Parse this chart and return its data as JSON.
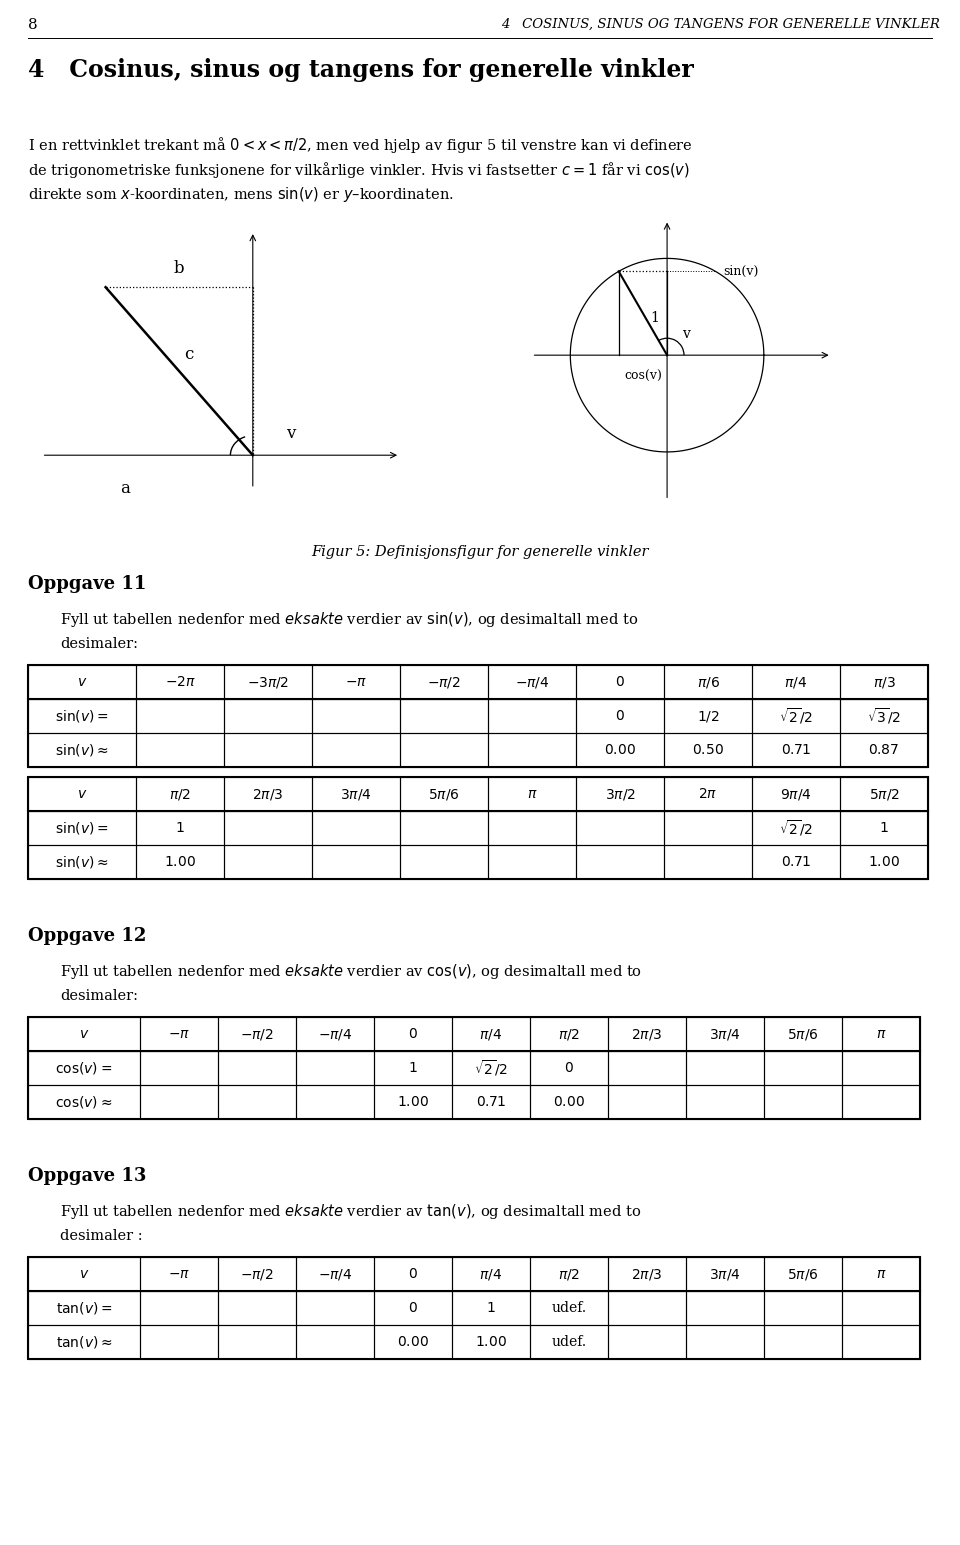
{
  "page_num": "8",
  "header": "4   COSINUS, SINUS OG TANGENS FOR GENERELLE VINKLER",
  "section_title": "4   Cosinus, sinus og tangens for generelle vinkler",
  "fig_caption": "Figur 5: Definisjonsfigur for generelle vinkler",
  "oppgave11_title": "Oppgave 11",
  "oppgave12_title": "Oppgave 12",
  "oppgave13_title": "Oppgave 13",
  "line1": "I en rettvinklet trekant må $0 < x < \\pi/2$, men ved hjelp av figur 5 til venstre kan vi definere",
  "line2": "de trigonometriske funksjonene for vilkårlige vinkler. Hvis vi fastsetter $c = 1$ får vi $\\cos(v)$",
  "line3": "direkte som $x$-koordinaten, mens $\\sin(v)$ er $y$–koordinaten.",
  "opp11_line1": "Fyll ut tabellen nedenfor med $\\mathit{eksakte}$ verdier av $\\sin(v)$, og desimaltall med to",
  "opp11_line2": "desimaler:",
  "opp12_line1": "Fyll ut tabellen nedenfor med $\\mathit{eksakte}$ verdier av $\\cos(v)$, og desimaltall med to",
  "opp12_line2": "desimaler:",
  "opp13_line1": "Fyll ut tabellen nedenfor med $\\mathit{eksakte}$ verdier av $\\tan(v)$, og desimaltall med to",
  "opp13_line2": "desimaler :",
  "t1_cols": [
    "$v$",
    "$-2\\pi$",
    "$-3\\pi/2$",
    "$-\\pi$",
    "$-\\pi/2$",
    "$-\\pi/4$",
    "$0$",
    "$\\pi/6$",
    "$\\pi/4$",
    "$\\pi/3$"
  ],
  "t1_row1": [
    "$\\sin(v) =$",
    "",
    "",
    "",
    "",
    "",
    "$0$",
    "$1/2$",
    "$\\sqrt{2}/2$",
    "$\\sqrt{3}/2$"
  ],
  "t1_row2": [
    "$\\sin(v) \\approx$",
    "",
    "",
    "",
    "",
    "",
    "$0.00$",
    "$0.50$",
    "$0.71$",
    "$0.87$"
  ],
  "t2_cols": [
    "$v$",
    "$\\pi/2$",
    "$2\\pi/3$",
    "$3\\pi/4$",
    "$5\\pi/6$",
    "$\\pi$",
    "$3\\pi/2$",
    "$2\\pi$",
    "$9\\pi/4$",
    "$5\\pi/2$"
  ],
  "t2_row1": [
    "$\\sin(v) =$",
    "$1$",
    "",
    "",
    "",
    "",
    "",
    "",
    "$\\sqrt{2}/2$",
    "$1$"
  ],
  "t2_row2": [
    "$\\sin(v) \\approx$",
    "$1.00$",
    "",
    "",
    "",
    "",
    "",
    "",
    "$0.71$",
    "$1.00$"
  ],
  "t3_cols": [
    "$v$",
    "$-\\pi$",
    "$-\\pi/2$",
    "$-\\pi/4$",
    "$0$",
    "$\\pi/4$",
    "$\\pi/2$",
    "$2\\pi/3$",
    "$3\\pi/4$",
    "$5\\pi/6$",
    "$\\pi$"
  ],
  "t3_row1": [
    "$\\cos(v) =$",
    "",
    "",
    "",
    "$1$",
    "$\\sqrt{2}/2$",
    "$0$",
    "",
    "",
    "",
    ""
  ],
  "t3_row2": [
    "$\\cos(v) \\approx$",
    "",
    "",
    "",
    "$1.00$",
    "$0.71$",
    "$0.00$",
    "",
    "",
    "",
    ""
  ],
  "t4_cols": [
    "$v$",
    "$-\\pi$",
    "$-\\pi/2$",
    "$-\\pi/4$",
    "$0$",
    "$\\pi/4$",
    "$\\pi/2$",
    "$2\\pi/3$",
    "$3\\pi/4$",
    "$5\\pi/6$",
    "$\\pi$"
  ],
  "t4_row1": [
    "$\\tan(v) =$",
    "",
    "",
    "",
    "$0$",
    "$1$",
    "udef.",
    "",
    "",
    "",
    ""
  ],
  "t4_row2": [
    "$\\tan(v) \\approx$",
    "",
    "",
    "",
    "$0.00$",
    "$1.00$",
    "udef.",
    "",
    "",
    "",
    ""
  ]
}
